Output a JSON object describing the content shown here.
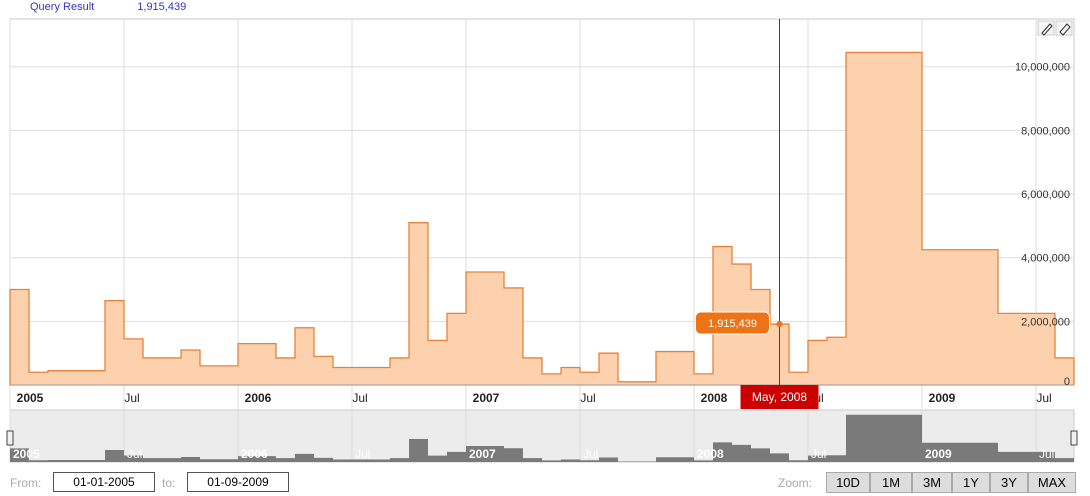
{
  "legend": {
    "label": "Query Result",
    "value": "1,915,439"
  },
  "crosshair": {
    "date_label": "May, 2008",
    "value_label": "1,915,439"
  },
  "range": {
    "from_label": "From:",
    "from_value": "01-01-2005",
    "to_label": "to:",
    "to_value": "01-09-2009"
  },
  "zoom": {
    "label": "Zoom:",
    "buttons": [
      "10D",
      "1M",
      "3M",
      "1Y",
      "3Y",
      "MAX"
    ]
  },
  "colors": {
    "line": "#e8823a",
    "fill": "#fdd0ae",
    "crosshair": "#bb1111",
    "tooltip": "#ec7316",
    "navigator": "#7a7a7a"
  },
  "icons": [
    "pencil-icon",
    "eraser-icon"
  ],
  "chart_data": {
    "type": "area",
    "step": true,
    "x_axis": {
      "type": "date",
      "range": [
        "2005-01",
        "2009-09"
      ],
      "tick_labels": [
        "2005",
        "Jul",
        "2006",
        "Jul",
        "2007",
        "Jul",
        "2008",
        "Jul",
        "2009",
        "Jul"
      ]
    },
    "y_axis": {
      "range": [
        0,
        11500000
      ],
      "tick_labels": [
        "0",
        "2,000,000",
        "4,000,000",
        "6,000,000",
        "8,000,000",
        "10,000,000"
      ]
    },
    "grid": true,
    "series": [
      {
        "x": [
          "2005-01",
          "2005-02",
          "2005-03",
          "2005-06",
          "2005-07",
          "2005-08",
          "2005-10",
          "2005-11",
          "2006-01",
          "2006-03",
          "2006-04",
          "2006-05",
          "2006-06",
          "2006-09",
          "2006-10",
          "2006-11",
          "2006-12",
          "2007-01",
          "2007-03",
          "2007-04",
          "2007-05",
          "2007-06",
          "2007-07",
          "2007-08",
          "2007-09",
          "2007-11",
          "2008-01",
          "2008-02",
          "2008-03",
          "2008-04",
          "2008-05",
          "2008-06",
          "2008-07",
          "2008-08",
          "2008-09",
          "2009-01",
          "2009-05",
          "2009-08",
          "2009-09"
        ],
        "values": [
          3000000,
          400000,
          450000,
          2650000,
          1450000,
          850000,
          1100000,
          600000,
          1300000,
          850000,
          1800000,
          900000,
          550000,
          850000,
          5100000,
          1400000,
          2250000,
          3550000,
          3050000,
          850000,
          350000,
          550000,
          400000,
          1000000,
          100000,
          1050000,
          350000,
          4350000,
          3800000,
          3000000,
          1915439,
          400000,
          1400000,
          1500000,
          10450000,
          4250000,
          2250000,
          850000,
          400000
        ]
      }
    ]
  }
}
